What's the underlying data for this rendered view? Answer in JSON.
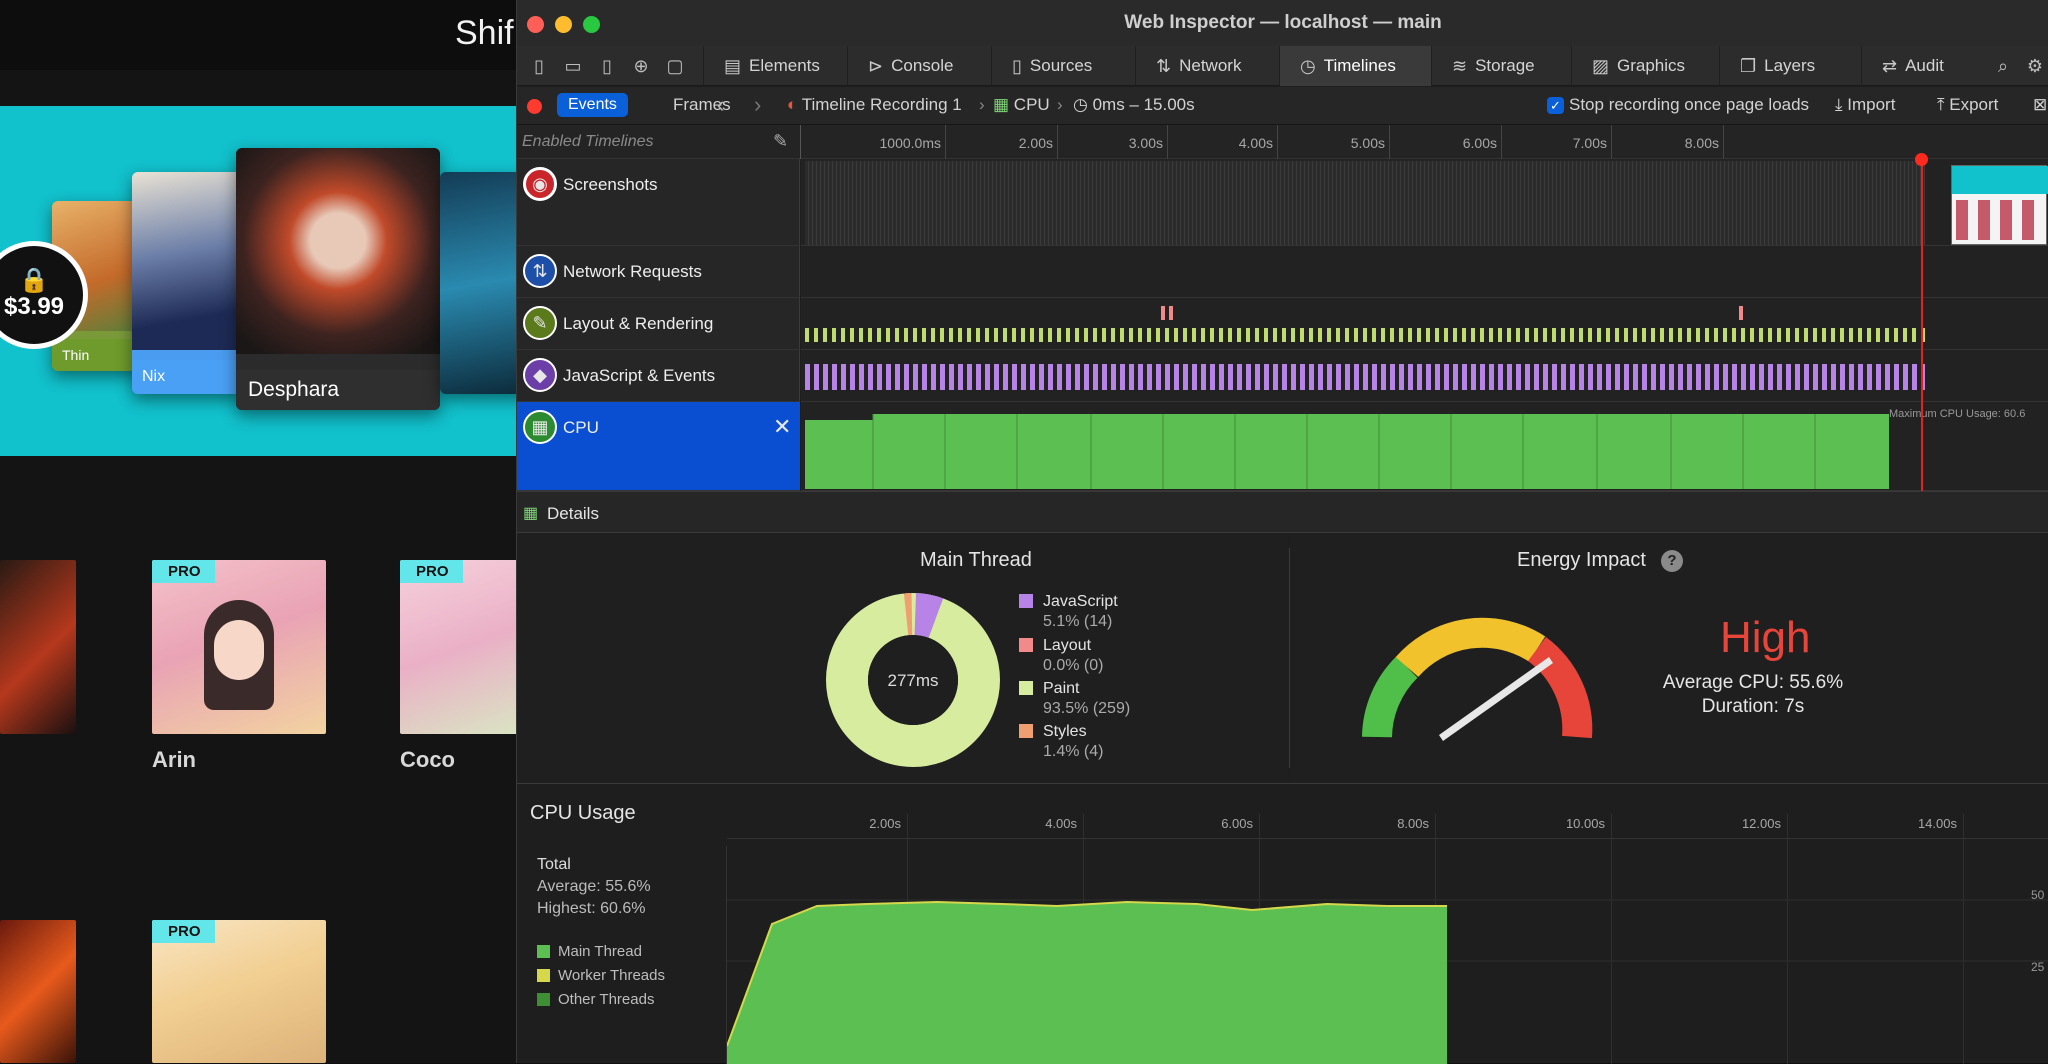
{
  "webapp": {
    "brand": "Shif",
    "price_badge": "$3.99",
    "hero_cards": [
      {
        "name": "Thin"
      },
      {
        "name": "Nix"
      },
      {
        "name": "Desphara"
      }
    ],
    "grid": [
      {
        "name": "Arin",
        "badge": "PRO"
      },
      {
        "name": "Coco",
        "badge": "PRO"
      },
      {
        "name": "",
        "badge": "PRO"
      }
    ]
  },
  "window": {
    "title": "Web Inspector — localhost — main"
  },
  "tabs": [
    "Elements",
    "Console",
    "Sources",
    "Network",
    "Timelines",
    "Storage",
    "Graphics",
    "Layers",
    "Audit"
  ],
  "active_tab": "Timelines",
  "navbar": {
    "events": "Events",
    "frames": "Frames",
    "recording": "Timeline Recording 1",
    "cpu": "CPU",
    "range": "0ms – 15.00s",
    "stop_label": "Stop recording once page loads",
    "import": "Import",
    "export": "Export"
  },
  "timeline": {
    "enabled_label": "Enabled Timelines",
    "ticks": [
      "1000.0ms",
      "2.00s",
      "3.00s",
      "4.00s",
      "5.00s",
      "6.00s",
      "7.00s",
      "8.00s"
    ],
    "rows": [
      "Screenshots",
      "Network Requests",
      "Layout & Rendering",
      "JavaScript & Events",
      "CPU"
    ],
    "max_cpu_label": "Maximum CPU Usage: 60.6",
    "colors": {
      "js": "#b883e6",
      "layout": "#f28a8a",
      "paint": "#bfdc6f",
      "styles": "#f0a070",
      "cpu": "#5cbf52"
    }
  },
  "details": {
    "label": "Details",
    "main_thread": {
      "title": "Main Thread",
      "center": "277ms",
      "legend": [
        {
          "name": "JavaScript",
          "value": "5.1% (14)",
          "color": "#b883e6"
        },
        {
          "name": "Layout",
          "value": "0.0% (0)",
          "color": "#f28a8a"
        },
        {
          "name": "Paint",
          "value": "93.5% (259)",
          "color": "#d7ec9f"
        },
        {
          "name": "Styles",
          "value": "1.4% (4)",
          "color": "#f0a070"
        }
      ]
    },
    "energy": {
      "title": "Energy Impact",
      "help": "?",
      "level": "High",
      "average": "Average CPU: 55.6%",
      "duration": "Duration: 7s"
    }
  },
  "cpu_usage": {
    "title": "CPU Usage",
    "ticks": [
      "2.00s",
      "4.00s",
      "6.00s",
      "8.00s",
      "10.00s",
      "12.00s",
      "14.00s"
    ],
    "total": "Total",
    "average": "Average: 55.6%",
    "highest": "Highest: 60.6%",
    "legend": [
      {
        "name": "Main Thread",
        "color": "#5cbf52"
      },
      {
        "name": "Worker Threads",
        "color": "#d4d84a"
      },
      {
        "name": "Other Threads",
        "color": "#3e8f34"
      }
    ],
    "y_labels": [
      "50",
      "25"
    ]
  }
}
